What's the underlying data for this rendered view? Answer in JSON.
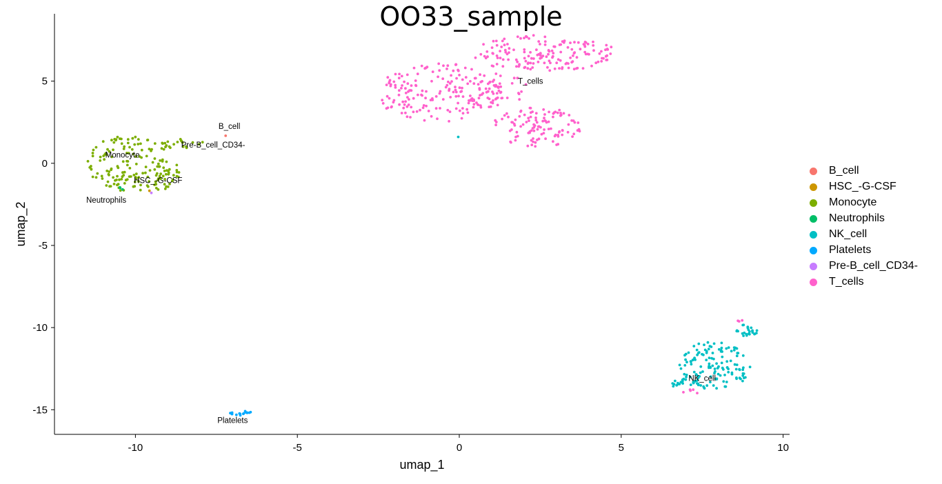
{
  "chart_data": {
    "type": "scatter",
    "title": "OO33_sample",
    "xlabel": "umap_1",
    "ylabel": "umap_2",
    "xlim": [
      -12.5,
      10.2
    ],
    "ylim": [
      -16.5,
      9.1
    ],
    "xticks": [
      -10,
      -5,
      0,
      5,
      10
    ],
    "yticks": [
      5,
      0,
      -5,
      -10,
      -15
    ],
    "grid": false,
    "legend_position": "right",
    "series": [
      {
        "name": "B_cell",
        "color": "#F8766D",
        "clusters": [
          {
            "cx": -7.2,
            "cy": 1.7,
            "rx": 0.05,
            "ry": 0.05,
            "n": 1
          }
        ]
      },
      {
        "name": "HSC_-G-CSF",
        "color": "#CD9600",
        "clusters": [
          {
            "cx": -9.5,
            "cy": -1.6,
            "rx": 0.1,
            "ry": 0.1,
            "n": 1
          }
        ]
      },
      {
        "name": "Monocyte",
        "color": "#7CAE00",
        "clusters": [
          {
            "cx": -10.2,
            "cy": 0.0,
            "rx": 1.3,
            "ry": 1.7,
            "n": 130
          },
          {
            "cx": -8.6,
            "cy": 1.2,
            "rx": 0.7,
            "ry": 0.3,
            "n": 20
          },
          {
            "cx": -9.2,
            "cy": -0.7,
            "rx": 0.6,
            "ry": 1.0,
            "n": 40
          }
        ]
      },
      {
        "name": "Neutrophils",
        "color": "#00BE67",
        "clusters": [
          {
            "cx": -10.5,
            "cy": -1.6,
            "rx": 0.2,
            "ry": 0.15,
            "n": 3
          }
        ]
      },
      {
        "name": "NK_cell",
        "color": "#00BFC4",
        "clusters": [
          {
            "cx": 7.9,
            "cy": -12.3,
            "rx": 1.1,
            "ry": 1.5,
            "n": 130
          },
          {
            "cx": 8.9,
            "cy": -10.1,
            "rx": 0.35,
            "ry": 0.5,
            "n": 25
          },
          {
            "cx": 7.0,
            "cy": -13.4,
            "rx": 0.5,
            "ry": 0.3,
            "n": 20
          },
          {
            "cx": -0.05,
            "cy": 1.6,
            "rx": 0.02,
            "ry": 0.02,
            "n": 1
          }
        ]
      },
      {
        "name": "Platelets",
        "color": "#00A9FF",
        "clusters": [
          {
            "cx": -6.75,
            "cy": -15.2,
            "rx": 0.35,
            "ry": 0.15,
            "n": 16
          }
        ]
      },
      {
        "name": "Pre-B_cell_CD34-",
        "color": "#C77CFF",
        "clusters": [
          {
            "cx": -9.5,
            "cy": -1.8,
            "rx": 0.05,
            "ry": 0.05,
            "n": 1
          }
        ]
      },
      {
        "name": "T_cells",
        "color": "#FF61CC",
        "clusters": [
          {
            "cx": -0.6,
            "cy": 4.3,
            "rx": 2.0,
            "ry": 1.8,
            "n": 190
          },
          {
            "cx": 2.6,
            "cy": 6.7,
            "rx": 2.3,
            "ry": 1.1,
            "n": 160
          },
          {
            "cx": 2.4,
            "cy": 2.2,
            "rx": 1.4,
            "ry": 1.2,
            "n": 110
          },
          {
            "cx": 1.3,
            "cy": 4.5,
            "rx": 0.8,
            "ry": 1.0,
            "n": 30
          },
          {
            "cx": 8.7,
            "cy": -9.6,
            "rx": 0.1,
            "ry": 0.2,
            "n": 3
          },
          {
            "cx": 7.2,
            "cy": -13.9,
            "rx": 0.4,
            "ry": 0.15,
            "n": 5
          }
        ]
      }
    ],
    "annotations": [
      {
        "text": "B_cell",
        "x": -7.1,
        "y": 2.1
      },
      {
        "text": "Pre-B_cell_CD34-",
        "x": -7.6,
        "y": 0.95
      },
      {
        "text": "Monocyte",
        "x": -10.4,
        "y": 0.35
      },
      {
        "text": "HSC_-G-CSF",
        "x": -9.3,
        "y": -1.2
      },
      {
        "text": "Neutrophils",
        "x": -10.9,
        "y": -2.4
      },
      {
        "text": "T_cells",
        "x": 2.2,
        "y": 4.85
      },
      {
        "text": "NK_cell",
        "x": 7.5,
        "y": -13.25
      },
      {
        "text": "Platelets",
        "x": -7.0,
        "y": -15.8
      }
    ]
  }
}
